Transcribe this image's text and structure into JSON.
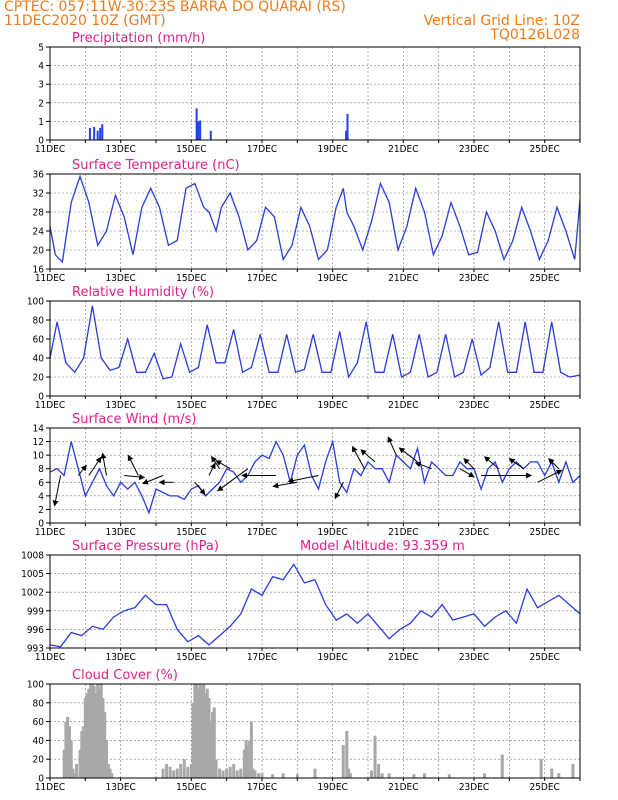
{
  "header": {
    "line1": "CPTEC:   057:11W-30:23S   BARRA DO QUARAI (RS)",
    "line2": "11DEC2020 10Z (GMT)",
    "right1": "Vertical Grid Line: 10Z",
    "right2": "TQ0126L028"
  },
  "colors": {
    "header": "#f07a1a",
    "title": "#e0208a",
    "line": "#2b3bdc",
    "bar": "#2440e6",
    "cloud": "#a8a8a8"
  },
  "chart_data": [
    {
      "type": "bar",
      "title": "Precipitation (mm/h)",
      "ylim": [
        0,
        5
      ],
      "yticks": [
        0,
        1,
        2,
        3,
        4,
        5
      ],
      "x_tick_labels": [
        "11DEC",
        "13DEC",
        "15DEC",
        "17DEC",
        "19DEC",
        "21DEC",
        "23DEC",
        "25DEC"
      ],
      "x_unit": "days since 11DEC2020 10Z",
      "x": [
        1.13,
        1.25,
        1.35,
        1.42,
        1.48,
        4.15,
        4.2,
        4.25,
        4.55,
        8.38,
        8.42
      ],
      "values": [
        0.65,
        0.7,
        0.5,
        0.65,
        0.85,
        1.7,
        1.0,
        1.05,
        0.5,
        0.5,
        1.4
      ]
    },
    {
      "type": "line",
      "title": "Surface Temperature (nC)",
      "ylim": [
        16,
        36
      ],
      "yticks": [
        16,
        20,
        24,
        28,
        32,
        36
      ],
      "x_tick_labels": [
        "11DEC",
        "13DEC",
        "15DEC",
        "17DEC",
        "19DEC",
        "21DEC",
        "23DEC",
        "25DEC"
      ],
      "x": [
        0,
        0.15,
        0.35,
        0.6,
        0.85,
        1.1,
        1.35,
        1.6,
        1.85,
        2.1,
        2.35,
        2.6,
        2.85,
        3.1,
        3.35,
        3.6,
        3.85,
        4.1,
        4.35,
        4.5,
        4.7,
        4.85,
        5.1,
        5.35,
        5.6,
        5.85,
        6.1,
        6.35,
        6.6,
        6.85,
        7.1,
        7.35,
        7.6,
        7.85,
        8.1,
        8.3,
        8.4,
        8.6,
        8.85,
        9.1,
        9.35,
        9.6,
        9.85,
        10.1,
        10.35,
        10.6,
        10.85,
        11.1,
        11.35,
        11.6,
        11.85,
        12.1,
        12.35,
        12.6,
        12.85,
        13.1,
        13.35,
        13.6,
        13.85,
        14.1,
        14.35,
        14.6,
        14.85,
        15.0
      ],
      "values": [
        25,
        19,
        17.5,
        30,
        35.5,
        30,
        21,
        24,
        31.5,
        27,
        19,
        29,
        33,
        29,
        21,
        22,
        33,
        34,
        29,
        28,
        24,
        29,
        32,
        27,
        20,
        22,
        29,
        27,
        18,
        21,
        29,
        25,
        18,
        20,
        29,
        33,
        28,
        25,
        20,
        26,
        34,
        30,
        20,
        25,
        33,
        28,
        19,
        23,
        30,
        25,
        19,
        19.5,
        28,
        24,
        18,
        22,
        29,
        24,
        18,
        22,
        29,
        24,
        18,
        30.5
      ]
    },
    {
      "type": "line",
      "title": "Relative Humidity (%)",
      "ylim": [
        0,
        100
      ],
      "yticks": [
        0,
        20,
        40,
        60,
        80,
        100
      ],
      "x_tick_labels": [
        "11DEC",
        "13DEC",
        "15DEC",
        "17DEC",
        "19DEC",
        "21DEC",
        "23DEC",
        "25DEC"
      ],
      "x": [
        0,
        0.2,
        0.45,
        0.7,
        0.95,
        1.2,
        1.45,
        1.7,
        1.95,
        2.2,
        2.45,
        2.7,
        2.95,
        3.2,
        3.45,
        3.7,
        3.95,
        4.2,
        4.45,
        4.7,
        4.95,
        5.2,
        5.45,
        5.7,
        5.95,
        6.2,
        6.45,
        6.7,
        6.95,
        7.2,
        7.45,
        7.7,
        7.95,
        8.2,
        8.45,
        8.7,
        8.95,
        9.2,
        9.45,
        9.7,
        9.95,
        10.2,
        10.45,
        10.7,
        10.95,
        11.2,
        11.45,
        11.7,
        11.95,
        12.2,
        12.45,
        12.7,
        12.95,
        13.2,
        13.45,
        13.7,
        13.95,
        14.2,
        14.45,
        14.7,
        15.0
      ],
      "values": [
        40,
        78,
        35,
        25,
        40,
        95,
        40,
        27,
        30,
        60,
        25,
        25,
        45,
        18,
        20,
        55,
        25,
        30,
        75,
        35,
        35,
        70,
        25,
        30,
        65,
        25,
        25,
        65,
        25,
        28,
        65,
        25,
        25,
        68,
        20,
        35,
        78,
        25,
        25,
        65,
        20,
        25,
        65,
        20,
        25,
        65,
        20,
        25,
        60,
        22,
        30,
        78,
        25,
        25,
        78,
        25,
        25,
        78,
        25,
        20,
        22
      ]
    },
    {
      "type": "line",
      "title": "Surface Wind (m/s)",
      "ylim": [
        0,
        14
      ],
      "yticks": [
        0,
        2,
        4,
        6,
        8,
        10,
        12,
        14
      ],
      "x_tick_labels": [
        "11DEC",
        "13DEC",
        "15DEC",
        "17DEC",
        "19DEC",
        "21DEC",
        "23DEC",
        "25DEC"
      ],
      "x": [
        0,
        0.2,
        0.4,
        0.6,
        0.8,
        1.0,
        1.2,
        1.4,
        1.6,
        1.8,
        2.0,
        2.2,
        2.4,
        2.6,
        2.8,
        3.0,
        3.2,
        3.4,
        3.6,
        3.8,
        4.0,
        4.2,
        4.4,
        4.6,
        4.8,
        5.0,
        5.2,
        5.4,
        5.6,
        5.8,
        6.0,
        6.2,
        6.4,
        6.6,
        6.8,
        7.0,
        7.2,
        7.4,
        7.6,
        7.8,
        8.0,
        8.2,
        8.4,
        8.6,
        8.8,
        9.0,
        9.2,
        9.4,
        9.6,
        9.8,
        10.0,
        10.2,
        10.4,
        10.6,
        10.8,
        11.0,
        11.2,
        11.4,
        11.6,
        11.8,
        12.0,
        12.2,
        12.4,
        12.6,
        12.8,
        13.0,
        13.2,
        13.4,
        13.6,
        13.8,
        14.0,
        14.2,
        14.4,
        14.6,
        14.8,
        15.0
      ],
      "values": [
        7.5,
        8,
        7,
        12,
        8,
        4,
        6,
        8,
        5.5,
        4,
        6,
        5,
        6,
        4,
        1.5,
        5,
        4.5,
        4,
        4,
        3.5,
        5,
        5.5,
        4,
        5,
        6,
        8,
        7.5,
        6,
        7,
        9,
        10,
        9.5,
        12,
        10,
        6,
        10,
        11.5,
        7,
        5,
        9,
        12,
        6,
        4.5,
        8,
        7,
        9,
        8,
        8,
        6,
        10,
        9,
        8,
        11,
        6,
        9,
        8,
        7,
        7,
        9,
        8,
        8,
        5,
        8,
        9,
        6,
        8,
        9,
        8,
        9,
        9,
        7,
        9,
        6,
        9,
        6,
        7
      ],
      "wind_vectors": [
        {
          "x": 0.3,
          "y": 7,
          "dx": -6,
          "dy": 30
        },
        {
          "x": 0.8,
          "y": 7,
          "dx": 8,
          "dy": -10
        },
        {
          "x": 1.1,
          "y": 7,
          "dx": 12,
          "dy": -18
        },
        {
          "x": 1.6,
          "y": 7,
          "dx": -4,
          "dy": -22
        },
        {
          "x": 2.1,
          "y": 7,
          "dx": 20,
          "dy": 2
        },
        {
          "x": 2.5,
          "y": 7,
          "dx": -10,
          "dy": -20
        },
        {
          "x": 3.2,
          "y": 7,
          "dx": -20,
          "dy": 8
        },
        {
          "x": 3.5,
          "y": 6,
          "dx": -14,
          "dy": 0
        },
        {
          "x": 4.1,
          "y": 6,
          "dx": 10,
          "dy": 12
        },
        {
          "x": 4.5,
          "y": 7,
          "dx": 6,
          "dy": -12
        },
        {
          "x": 4.8,
          "y": 8,
          "dx": -8,
          "dy": -12
        },
        {
          "x": 5.1,
          "y": 8,
          "dx": -14,
          "dy": -8
        },
        {
          "x": 5.6,
          "y": 8,
          "dx": -30,
          "dy": 22
        },
        {
          "x": 6.4,
          "y": 7,
          "dx": -34,
          "dy": 0
        },
        {
          "x": 7.0,
          "y": 6,
          "dx": -24,
          "dy": 4
        },
        {
          "x": 7.6,
          "y": 7,
          "dx": -30,
          "dy": 6
        },
        {
          "x": 8.3,
          "y": 6,
          "dx": -8,
          "dy": 16
        },
        {
          "x": 8.9,
          "y": 8,
          "dx": -12,
          "dy": -22
        },
        {
          "x": 9.2,
          "y": 9,
          "dx": -14,
          "dy": -12
        },
        {
          "x": 9.8,
          "y": 10,
          "dx": -8,
          "dy": -18
        },
        {
          "x": 10.4,
          "y": 9,
          "dx": -18,
          "dy": -14
        },
        {
          "x": 10.8,
          "y": 8,
          "dx": -16,
          "dy": -6
        },
        {
          "x": 11.6,
          "y": 8,
          "dx": 14,
          "dy": 8
        },
        {
          "x": 12.0,
          "y": 8,
          "dx": -10,
          "dy": -10
        },
        {
          "x": 12.2,
          "y": 7,
          "dx": 50,
          "dy": 0
        },
        {
          "x": 12.7,
          "y": 8,
          "dx": -14,
          "dy": -12
        },
        {
          "x": 13.4,
          "y": 8,
          "dx": -14,
          "dy": -10
        },
        {
          "x": 13.8,
          "y": 6,
          "dx": 24,
          "dy": -12
        },
        {
          "x": 14.4,
          "y": 8,
          "dx": -10,
          "dy": -10
        }
      ]
    },
    {
      "type": "line",
      "title": "Surface Pressure (hPa)",
      "annotation": "Model Altitude: 93.359 m",
      "ylim": [
        993,
        1008
      ],
      "yticks": [
        993,
        996,
        999,
        1002,
        1005,
        1008
      ],
      "x_tick_labels": [
        "11DEC",
        "13DEC",
        "15DEC",
        "17DEC",
        "19DEC",
        "21DEC",
        "23DEC",
        "25DEC"
      ],
      "x": [
        0,
        0.3,
        0.6,
        0.9,
        1.2,
        1.5,
        1.8,
        2.1,
        2.4,
        2.7,
        3.0,
        3.3,
        3.6,
        3.9,
        4.2,
        4.5,
        4.8,
        5.1,
        5.4,
        5.7,
        6.0,
        6.3,
        6.6,
        6.9,
        7.2,
        7.5,
        7.8,
        8.1,
        8.4,
        8.7,
        9.0,
        9.3,
        9.6,
        9.9,
        10.2,
        10.5,
        10.8,
        11.1,
        11.4,
        11.7,
        12.0,
        12.3,
        12.6,
        12.9,
        13.2,
        13.5,
        13.8,
        14.1,
        14.4,
        14.7,
        15.0
      ],
      "values": [
        993.5,
        993.2,
        995.5,
        995,
        996.5,
        996,
        998,
        999,
        999.5,
        1001.5,
        1000,
        1000,
        996,
        994,
        995,
        993.5,
        995,
        996.5,
        998.5,
        1002.5,
        1001.5,
        1004.5,
        1004,
        1006.5,
        1003.5,
        1004,
        1000,
        997.5,
        998.5,
        997,
        998.5,
        996.5,
        994.5,
        996,
        997,
        999,
        998,
        1000,
        997.5,
        998,
        998.5,
        996.5,
        998,
        999,
        997,
        1002.5,
        999.5,
        1000.5,
        1001.5,
        1000,
        998.5
      ]
    },
    {
      "type": "bar",
      "title": "Cloud Cover (%)",
      "ylim": [
        0,
        100
      ],
      "yticks": [
        0,
        20,
        40,
        60,
        80,
        100
      ],
      "x_tick_labels": [
        "11DEC",
        "13DEC",
        "15DEC",
        "17DEC",
        "19DEC",
        "21DEC",
        "23DEC",
        "25DEC"
      ],
      "x": [
        0.4,
        0.45,
        0.5,
        0.55,
        0.6,
        0.65,
        0.7,
        0.75,
        0.85,
        0.9,
        0.95,
        1.0,
        1.05,
        1.1,
        1.15,
        1.2,
        1.25,
        1.3,
        1.35,
        1.4,
        1.45,
        1.5,
        1.55,
        1.6,
        1.65,
        1.7,
        1.75,
        3.2,
        3.3,
        3.4,
        3.5,
        3.6,
        3.7,
        3.8,
        3.9,
        4.0,
        4.05,
        4.1,
        4.15,
        4.2,
        4.25,
        4.3,
        4.35,
        4.4,
        4.45,
        4.5,
        4.55,
        4.6,
        4.65,
        4.7,
        4.8,
        4.9,
        5.0,
        5.1,
        5.2,
        5.3,
        5.4,
        5.5,
        5.55,
        5.6,
        5.65,
        5.7,
        5.75,
        5.8,
        5.9,
        6.0,
        6.3,
        6.6,
        7.0,
        7.5,
        8.3,
        8.4,
        8.45,
        8.5,
        9.1,
        9.2,
        9.3,
        9.4,
        9.6,
        10.3,
        10.6,
        11.3,
        12.3,
        12.8,
        13.9,
        14.2,
        14.4,
        14.8
      ],
      "values": [
        30,
        60,
        65,
        55,
        40,
        10,
        5,
        15,
        30,
        50,
        55,
        85,
        90,
        95,
        100,
        100,
        98,
        90,
        100,
        95,
        100,
        85,
        70,
        40,
        15,
        10,
        5,
        10,
        15,
        12,
        8,
        10,
        15,
        20,
        12,
        15,
        80,
        100,
        100,
        95,
        100,
        98,
        100,
        90,
        95,
        85,
        60,
        70,
        75,
        20,
        10,
        8,
        10,
        12,
        15,
        8,
        10,
        30,
        40,
        35,
        40,
        60,
        10,
        8,
        5,
        5,
        4,
        5,
        4,
        10,
        35,
        50,
        10,
        5,
        8,
        45,
        15,
        5,
        5,
        4,
        5,
        4,
        5,
        25,
        20,
        10,
        5,
        15
      ]
    }
  ]
}
